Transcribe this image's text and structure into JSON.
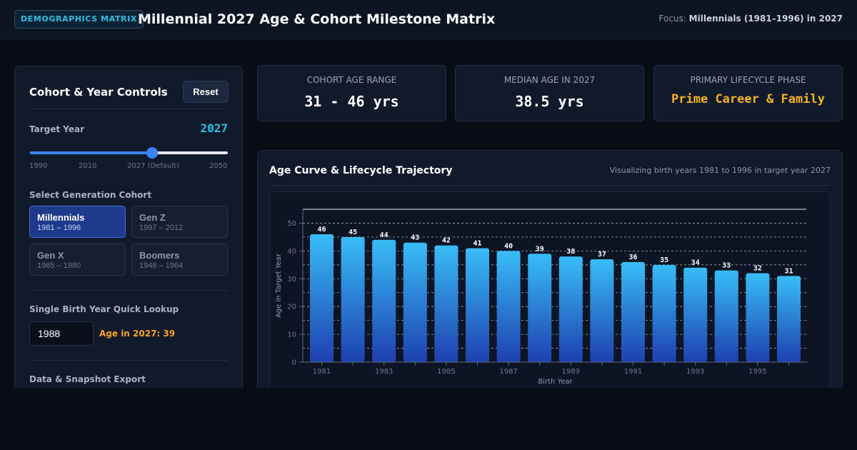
{
  "header": {
    "tag": "DEMOGRAPHICS MATRIX",
    "title": "Millennial 2027 Age & Cohort Milestone Matrix",
    "focus_label": "Focus:",
    "focus_value": "Millennials (1981–1996) in 2027"
  },
  "controls": {
    "title": "Cohort & Year Controls",
    "reset_label": "Reset",
    "target_year_label": "Target Year",
    "target_year_value": "2027",
    "slider": {
      "min": 1990,
      "max": 2050,
      "value": 2027
    },
    "slider_ticks": [
      "1990",
      "2010",
      "2027 (Default)",
      "2050"
    ],
    "cohort_label": "Select Generation Cohort",
    "cohorts": [
      {
        "name": "Millennials",
        "range": "1981 – 1996",
        "active": true
      },
      {
        "name": "Gen Z",
        "range": "1997 – 2012",
        "active": false
      },
      {
        "name": "Gen X",
        "range": "1965 – 1980",
        "active": false
      },
      {
        "name": "Boomers",
        "range": "1946 – 1964",
        "active": false
      }
    ],
    "lookup_label": "Single Birth Year Quick Lookup",
    "lookup_value": "1988",
    "lookup_result": "Age in 2027: 39",
    "export_label": "Data & Snapshot Export"
  },
  "stats": [
    {
      "label": "COHORT AGE RANGE",
      "value": "31 - 46 yrs"
    },
    {
      "label": "MEDIAN AGE IN 2027",
      "value": "38.5 yrs"
    },
    {
      "label": "PRIMARY LIFECYCLE PHASE",
      "value": "Prime Career & Family"
    }
  ],
  "chart_panel": {
    "title": "Age Curve & Lifecycle Trajectory",
    "subtitle": "Visualizing birth years 1981 to 1996 in target year 2027"
  },
  "colors": {
    "accent_cyan": "#2bc0e0",
    "accent_blue": "#3b82f6",
    "accent_gold": "#f5b324",
    "bar_top": "#38bdf8",
    "bar_bottom": "#1e40af"
  },
  "chart_data": {
    "type": "bar",
    "categories": [
      "1981",
      "1982",
      "1983",
      "1984",
      "1985",
      "1986",
      "1987",
      "1988",
      "1989",
      "1990",
      "1991",
      "1992",
      "1993",
      "1994",
      "1995",
      "1996"
    ],
    "values": [
      46,
      45,
      44,
      43,
      42,
      41,
      40,
      39,
      38,
      37,
      36,
      35,
      34,
      33,
      32,
      31
    ],
    "xlabel": "Birth Year",
    "ylabel": "Age in Target Year",
    "ylim": [
      0,
      55
    ],
    "yticks": [
      0,
      10,
      20,
      30,
      40,
      50
    ],
    "xtick_labels": [
      "1981",
      "1983",
      "1985",
      "1987",
      "1989",
      "1991",
      "1993",
      "1995"
    ],
    "grid": true,
    "data_labels": true
  }
}
